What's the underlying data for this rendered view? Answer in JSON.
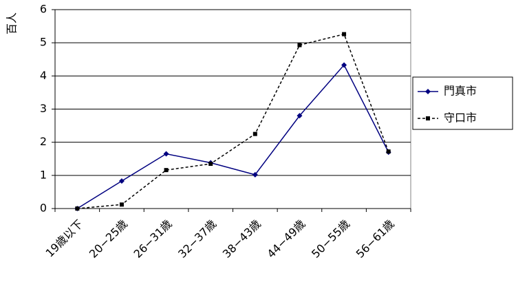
{
  "chart_data": {
    "type": "line",
    "y_label": "百人",
    "categories": [
      "19歳以下",
      "20−25歳",
      "26−31歳",
      "32−37歳",
      "38−43歳",
      "44−49歳",
      "50−55歳",
      "56−61歳"
    ],
    "series": [
      {
        "name": "門真市",
        "color": "#000080",
        "dash": false,
        "marker": "diamond",
        "values": [
          0,
          0.83,
          1.65,
          1.38,
          1.02,
          2.8,
          4.33,
          1.7
        ]
      },
      {
        "name": "守口市",
        "color": "#000000",
        "dash": true,
        "marker": "square",
        "values": [
          0,
          0.12,
          1.16,
          1.35,
          2.25,
          4.93,
          5.26,
          1.72
        ]
      }
    ],
    "ylim": [
      0,
      6
    ],
    "yticks": [
      0,
      1,
      2,
      3,
      4,
      5,
      6
    ],
    "grid": true,
    "legend": "right"
  }
}
